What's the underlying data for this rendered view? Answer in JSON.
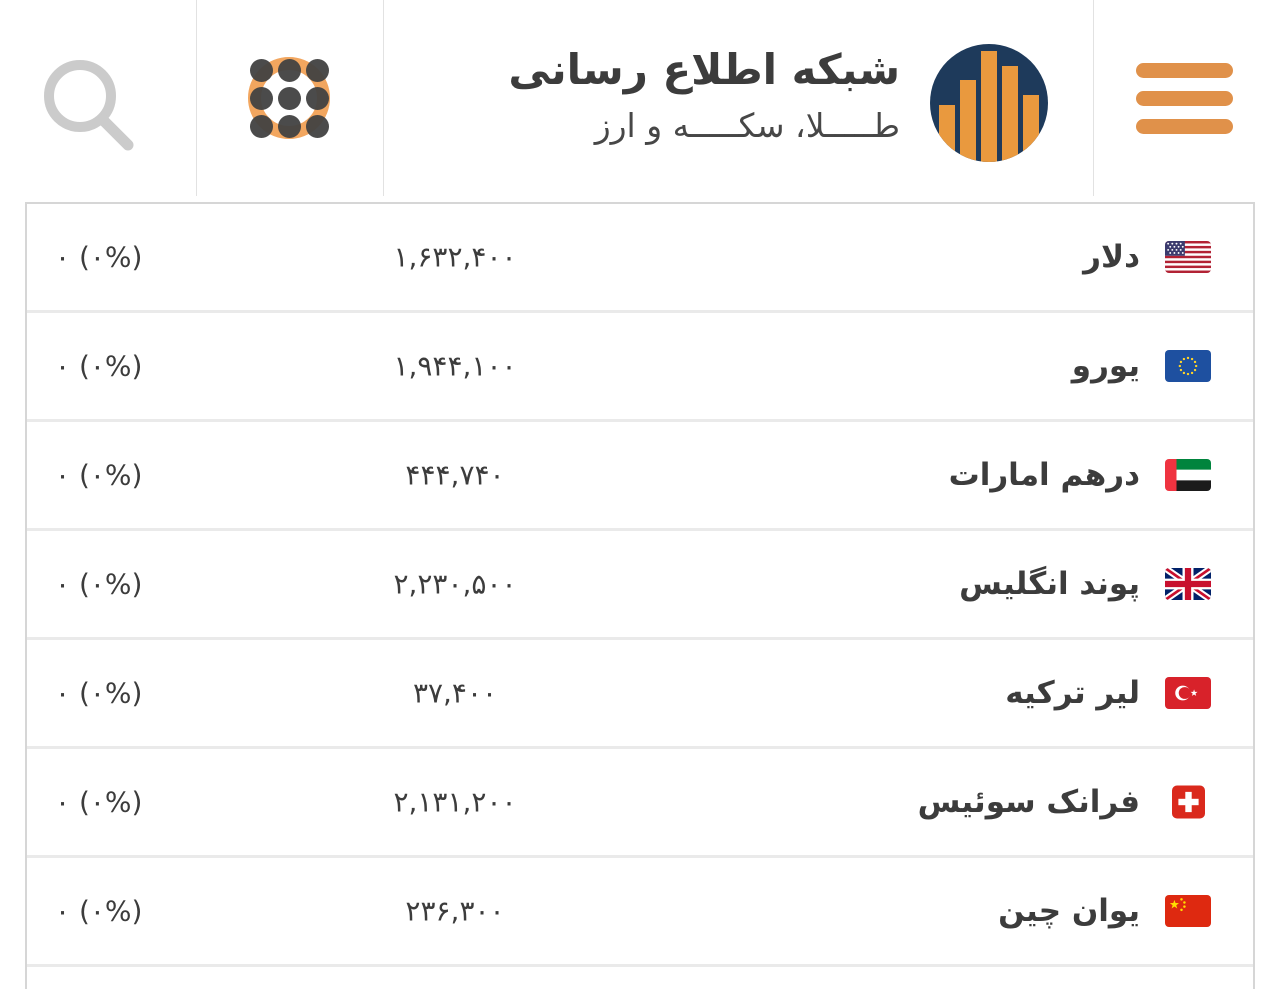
{
  "header": {
    "search_icon": "magnifier-icon",
    "apps_icon": "dots-grid-icon",
    "menu_icon": "hamburger-icon",
    "logo_icon": "bar-chart-circle-logo",
    "brand": {
      "title": "شبکه اطلاع رسانی",
      "subtitle": "طـــــلا، سکـــــه و ارز"
    }
  },
  "colors": {
    "accent_orange": "#E0914A",
    "ring_orange": "#F2A65F",
    "logo_navy": "#1E3A5B",
    "logo_bars_orange": "#E9993E",
    "text": "#3C3C3C",
    "header_divider": "#E2E2E2",
    "table_border": "#D6D6D6",
    "row_separator": "#EAEAEA",
    "search_gray": "#CBCBCB"
  },
  "table": {
    "rows": [
      {
        "name": "دلار",
        "flag_icon": "us-flag-icon",
        "price": "۱,۶۳۲,۴۰۰",
        "change": "۰ (۰%)"
      },
      {
        "name": "یورو",
        "flag_icon": "eu-flag-icon",
        "price": "۱,۹۴۴,۱۰۰",
        "change": "۰ (۰%)"
      },
      {
        "name": "درهم امارات",
        "flag_icon": "ae-flag-icon",
        "price": "۴۴۴,۷۴۰",
        "change": "۰ (۰%)"
      },
      {
        "name": "پوند انگلیس",
        "flag_icon": "gb-flag-icon",
        "price": "۲,۲۳۰,۵۰۰",
        "change": "۰ (۰%)"
      },
      {
        "name": "لیر ترکیه",
        "flag_icon": "tr-flag-icon",
        "price": "۳۷,۴۰۰",
        "change": "۰ (۰%)"
      },
      {
        "name": "فرانک سوئیس",
        "flag_icon": "ch-flag-icon",
        "price": "۲,۱۳۱,۲۰۰",
        "change": "۰ (۰%)"
      },
      {
        "name": "یوان چین",
        "flag_icon": "cn-flag-icon",
        "price": "۲۳۶,۳۰۰",
        "change": "۰ (۰%)"
      }
    ]
  }
}
